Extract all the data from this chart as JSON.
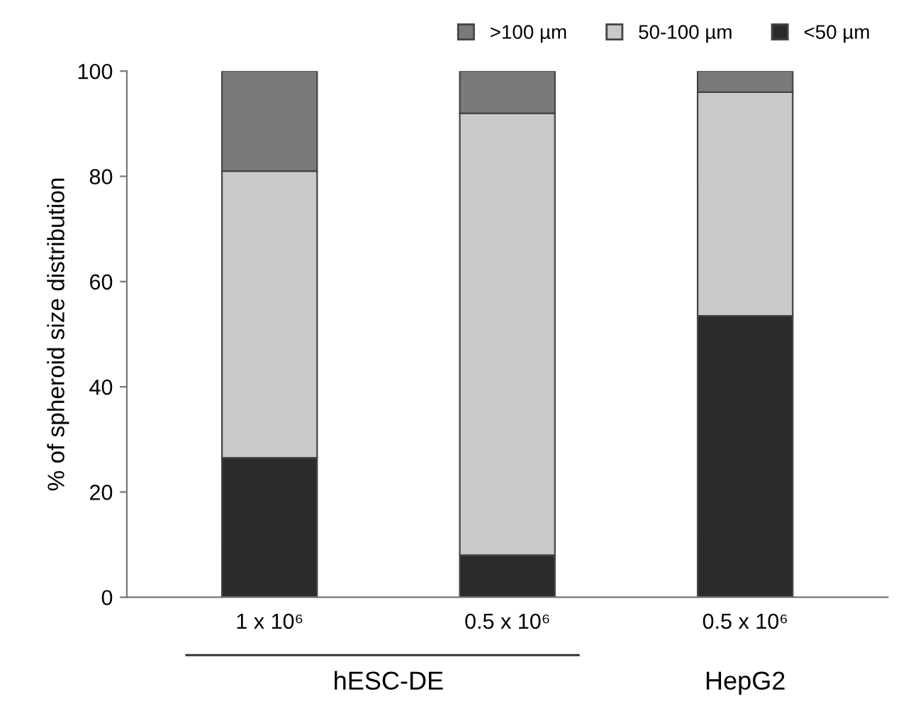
{
  "chart_data": {
    "type": "bar",
    "stacked": true,
    "ylabel": "% of spheroid size distribution",
    "categories": [
      "1 x 10⁶",
      "0.5 x 10⁶",
      "0.5 x 10⁶"
    ],
    "series": [
      {
        "name": "<50 µm",
        "color": "#2b2b2b",
        "values": [
          26.5,
          8,
          53.5
        ]
      },
      {
        "name": "50-100 µm",
        "color": "#c9c9c9",
        "values": [
          54.5,
          84,
          42.5
        ]
      },
      {
        "name": ">100 µm",
        "color": "#7a7a7a",
        "values": [
          19,
          8,
          4
        ]
      }
    ],
    "ylim": [
      0,
      100
    ],
    "yticks": [
      0,
      20,
      40,
      60,
      80,
      100
    ],
    "grid": false,
    "legend": "top right",
    "annotations": [
      "hESC-DE",
      "HepG2"
    ]
  }
}
